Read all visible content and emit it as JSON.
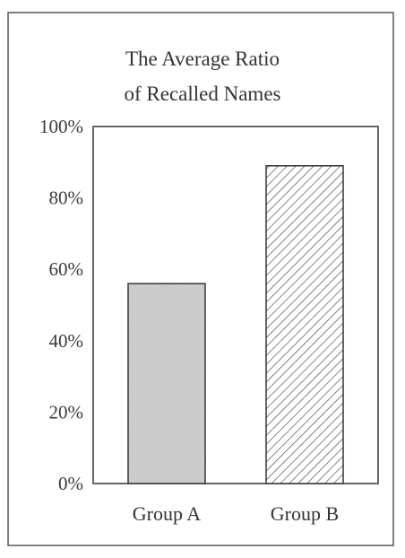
{
  "chart_data": {
    "type": "bar",
    "title_lines": [
      "The Average Ratio",
      "of Recalled Names"
    ],
    "categories": [
      "Group A",
      "Group B"
    ],
    "values": [
      56,
      89
    ],
    "ylim": [
      0,
      100
    ],
    "yticks": [
      0,
      20,
      40,
      60,
      80,
      100
    ],
    "ytick_labels": [
      "0%",
      "20%",
      "40%",
      "60%",
      "80%",
      "100%"
    ],
    "xlabel": "",
    "ylabel": "",
    "grid": false,
    "bar_styles": [
      {
        "fill": "#cfcfcf",
        "pattern": "stipple"
      },
      {
        "fill": "#ffffff",
        "pattern": "diagonal-hatch"
      }
    ],
    "colors": {
      "frame": "#333333",
      "text": "#333333"
    }
  }
}
